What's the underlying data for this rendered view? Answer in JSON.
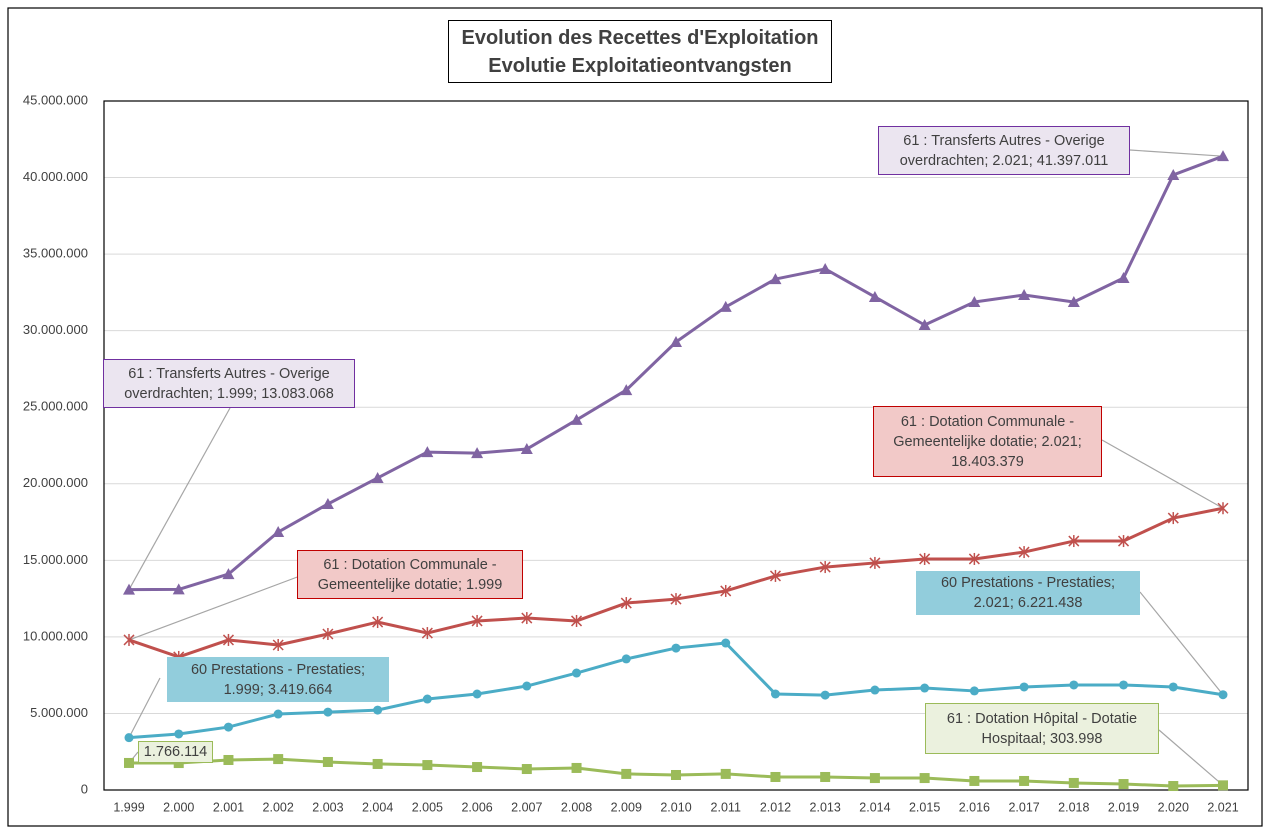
{
  "chart_data": {
    "type": "line",
    "title": "Evolution des Recettes d'Exploitation",
    "subtitle": "Evolutie Exploitatieontvangsten",
    "categories": [
      "1.999",
      "2.000",
      "2.001",
      "2.002",
      "2.003",
      "2.004",
      "2.005",
      "2.006",
      "2.007",
      "2.008",
      "2.009",
      "2.010",
      "2.011",
      "2.012",
      "2.013",
      "2.014",
      "2.015",
      "2.016",
      "2.017",
      "2.018",
      "2.019",
      "2.020",
      "2.021"
    ],
    "series": [
      {
        "color": "#8064a2",
        "marker": "triangle",
        "values": [
          13083068,
          13100000,
          14100000,
          16850000,
          18680000,
          20380000,
          22070000,
          22000000,
          22270000,
          24170000,
          26120000,
          29260000,
          31550000,
          33370000,
          34030000,
          32200000,
          30370000,
          31870000,
          32330000,
          31870000,
          33440000,
          40170000,
          41397011
        ]
      },
      {
        "color": "#c0504d",
        "marker": "asterisk",
        "values": [
          9800000,
          8690000,
          9800000,
          9470000,
          10190000,
          10970000,
          10250000,
          11040000,
          11230000,
          11040000,
          12210000,
          12470000,
          13000000,
          13980000,
          14560000,
          14830000,
          15090000,
          15090000,
          15540000,
          16260000,
          16260000,
          17760000,
          18403379
        ]
      },
      {
        "color": "#4bacc6",
        "marker": "circle",
        "values": [
          3419664,
          3660000,
          4110000,
          4960000,
          5090000,
          5220000,
          5940000,
          6270000,
          6790000,
          7640000,
          8560000,
          9270000,
          9600000,
          6270000,
          6200000,
          6530000,
          6660000,
          6470000,
          6730000,
          6860000,
          6860000,
          6730000,
          6221438
        ]
      },
      {
        "color": "#9bbb59",
        "marker": "square",
        "values": [
          1766114,
          1760000,
          1960000,
          2020000,
          1830000,
          1700000,
          1630000,
          1500000,
          1370000,
          1440000,
          1050000,
          980000,
          1050000,
          850000,
          850000,
          780000,
          780000,
          590000,
          590000,
          460000,
          390000,
          260000,
          303998
        ]
      }
    ],
    "annotations": [
      {
        "text": "61 : Transferts Autres - Overige overdrachten; 2.021; 41.397.011"
      },
      {
        "text": "61 : Transferts Autres - Overige overdrachten; 1.999; 13.083.068"
      },
      {
        "text": "61 : Dotation Communale - Gemeentelijke dotatie; 2.021; 18.403.379"
      },
      {
        "text": "61 : Dotation Communale - Gemeentelijke dotatie; 1.999"
      },
      {
        "text": "60 Prestations - Prestaties; 2.021; 6.221.438"
      },
      {
        "text": "60 Prestations - Prestaties; 1.999; 3.419.664"
      },
      {
        "text": "61 : Dotation Hôpital - Dotatie Hospitaal; 303.998"
      },
      {
        "text": "1.766.114"
      }
    ],
    "ylim": [
      0,
      45000000
    ],
    "yticks": [
      {
        "value": 0,
        "label": "0"
      },
      {
        "value": 5000000,
        "label": "5.000.000"
      },
      {
        "value": 10000000,
        "label": "10.000.000"
      },
      {
        "value": 15000000,
        "label": "15.000.000"
      },
      {
        "value": 20000000,
        "label": "20.000.000"
      },
      {
        "value": 25000000,
        "label": "25.000.000"
      },
      {
        "value": 30000000,
        "label": "30.000.000"
      },
      {
        "value": 35000000,
        "label": "35.000.000"
      },
      {
        "value": 40000000,
        "label": "40.000.000"
      },
      {
        "value": 45000000,
        "label": "45.000.000"
      }
    ],
    "grid": true
  }
}
